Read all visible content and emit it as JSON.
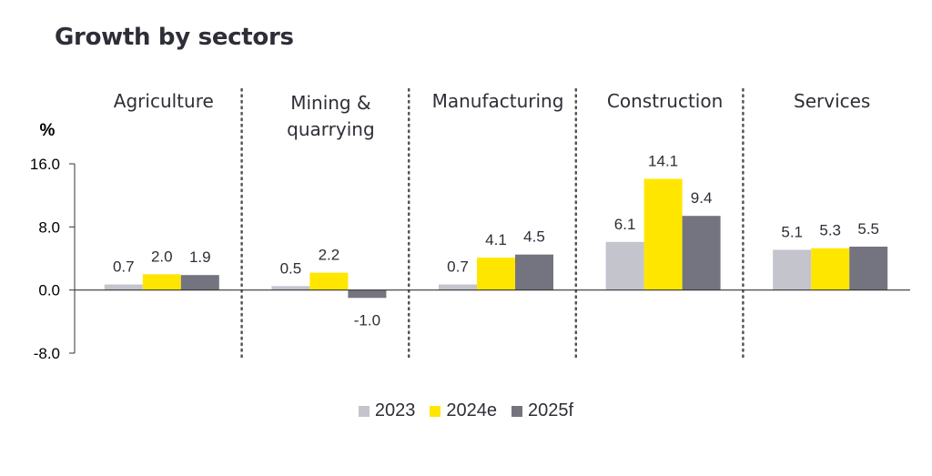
{
  "chart_data": {
    "type": "bar",
    "title": "Growth by sectors",
    "ylabel": "%",
    "ylim": [
      -8,
      16
    ],
    "yticks": [
      "16.0",
      "8.0",
      "0.0",
      "-8.0"
    ],
    "categories": [
      "Agriculture",
      "Mining & quarrying",
      "Manufacturing",
      "Construction",
      "Services"
    ],
    "category_lines": [
      [
        "Agriculture"
      ],
      [
        "Mining &",
        "quarrying"
      ],
      [
        "Manufacturing"
      ],
      [
        "Construction"
      ],
      [
        "Services"
      ]
    ],
    "series": [
      {
        "name": "2023",
        "color": "#c4c4cd",
        "values": [
          0.7,
          0.5,
          0.7,
          6.1,
          5.1
        ]
      },
      {
        "name": "2024e",
        "color": "#ffe600",
        "values": [
          2.0,
          2.2,
          4.1,
          14.1,
          5.3
        ]
      },
      {
        "name": "2025f",
        "color": "#747480",
        "values": [
          1.9,
          -1.0,
          4.5,
          9.4,
          5.5
        ]
      }
    ],
    "grid": false,
    "legend_position": "bottom-center",
    "separator_style": "dotted"
  }
}
